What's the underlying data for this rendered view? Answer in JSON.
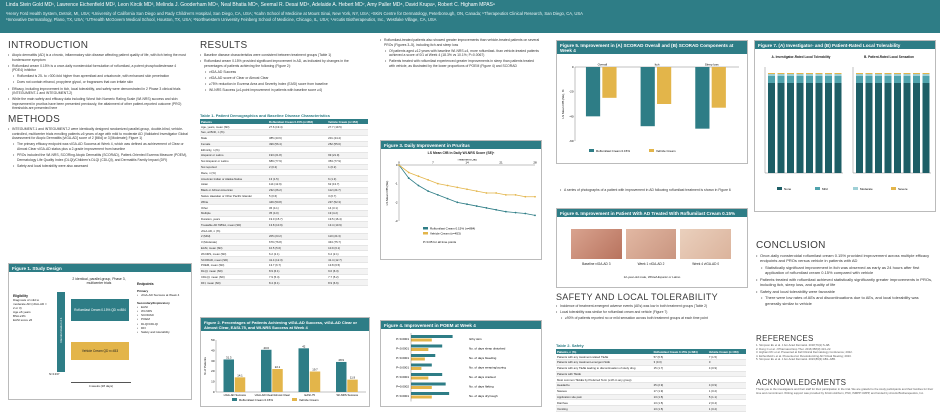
{
  "header": {
    "lines": [
      "Linda Stein Gold MD¹, Lawrence Eichenfield MD², Leon Kircik MD³, Melinda J. Gooderham MD⁴, Neal Bhatia MD⁵, Seemal R. Desai MD⁶, Adelaide A. Hebert MD⁷, Amy Paller MD⁸, David Krupa⁹, Robert C. Higham MPAS⁹",
      "¹Henry Ford Health System, Detroit, MI, USA; ²University of California San Diego and Rady Children's Hospital, San Diego, CA, USA; ³Icahn School of Medicine at Mount Sinai, New York, NY, USA; ⁴SKiN Centre for Dermatology, Peterborough, ON, Canada; ⁵Therapeutics Clinical Research, San Diego, CA, USA",
      "⁶Innovative Dermatology, Plano, TX, USA; ⁷UTHealth McGovern Medical School, Houston, TX, USA; ⁸Northwestern University Feinberg School of Medicine, Chicago, IL, USA; ⁹Arcutis Biotherapeutics, Inc., Westlake Village, CA, USA"
    ]
  },
  "intro": {
    "title": "INTRODUCTION",
    "bullets": [
      "Atopic dermatitis (AD) is a chronic, inflammatory skin disease affecting patient quality of life, with itch being the most burdensome symptom",
      "Roflumilast cream 0.15% is a once-daily nonsteroidal formulation of roflumilast, a potent phosphodiesterase 4 (PDE4) inhibitor",
      "Roflumilast is 25- to >300-fold higher than apremilast and crisaborole, with enhanced skin penetration",
      "Does not contain ethanol, propylene glycol, or fragrances that can irritate skin",
      "Efficacy, including improvement in itch, local tolerability, and safety were demonstrated in 2 Phase 3 clinical trials (INTEGUMENT-1 and INTEGUMENT-2)",
      "While the main safety and efficacy data including Worst Itch Numeric Rating Scale (WI-NRS) success and skin improvement in pruritus have been presented previously, the attainment of other patient-reported outcome (PRO) thresholds are presented here"
    ]
  },
  "methods": {
    "title": "METHODS",
    "bullets": [
      "INTEGUMENT-1 and INTEGUMENT-2 were identically designed randomized parallel-group, double-blind, vehicle-controlled, multicenter trials enrolling patients ≥6 years of age with mild to moderate AD (Validated Investigator Global Assessment for Atopic Dermatitis [vIGA-AD] score of 2 [Mild] or 3 [Moderate]; Figure 1)",
      "The primary efficacy endpoint was vIGA-AD Success at Week 4, which was defined as achievement of Clear or Almost Clear vIGA-AD status plus a 2-grade improvement from baseline",
      "PROs included the WI-NRS, SCORing Atopic Dermatitis (SCORAD), Patient-Oriented Eczema Measure (POEM), Dermatology Life Quality Index (DLQI)/Children's DLQI (CDLQI), and Dermatitis Family Impact (DFI)",
      "Safety and local tolerability were also assessed"
    ],
    "figure1": {
      "title": "Figure 1. Study Design",
      "design_text": "2 identical, parallel-group, Phase 3, multicenter trials",
      "randomization": "Randomization 2:1",
      "arm1": "Roflumilast Cream 0.15% QD n=884",
      "arm2": "Vehicle Cream QD n=453",
      "n_label": "N=1337",
      "duration": "4 weeks (28 days)",
      "eligibility_title": "Eligibility",
      "eligibility": [
        "Diagnosis of mild to moderate AD (vIGA-AD = 2 or 3)",
        "Age ≥6 years",
        "BSA ≥3%",
        "EASI score ≥5"
      ],
      "endpoints_title": "Endpoints",
      "primary_title": "Primary",
      "primary": [
        "vIGA-AD Success at Week 4"
      ],
      "secondary_title": "Secondary/Exploratory",
      "secondary": [
        "EASI",
        "WI-NRS",
        "SCORAD",
        "POEM",
        "DLQI/CDLQI",
        "DFI",
        "Safety and tolerability"
      ]
    }
  },
  "results": {
    "title": "RESULTS",
    "bullets": [
      "Baseline disease characteristics were consistent between treatment groups (Table 1)",
      "Roflumilast cream 0.15% provided significant improvement in AD, as indicated by changes in the percentages of patients achieving the following (Figure 2):",
      "vIGA-AD Success",
      "vIGA-AD score of Clear or Almost Clear",
      "≥75% reduction in Eczema Area and Severity Index (EASI) score from baseline",
      "WI-NRS Success (≥4-point improvement in patients with baseline score ≥4)"
    ],
    "table1": {
      "title": "Table 1. Patient Demographics and Baseline Disease Characteristics",
      "headers": [
        "Patients",
        "Roflumilast Cream 0.15% (n=884)",
        "Vehicle Cream (n=453)"
      ],
      "rows": [
        [
          "Age, years, mean (SD)",
          "27.6 (19.4)",
          "27.7 (19.5)"
        ],
        [
          "Sex, at Birth, n (%)",
          "",
          ""
        ],
        [
          "Male",
          "385 (43.6)",
          "201 (44.4)"
        ],
        [
          "Female",
          "499 (56.4)",
          "252 (55.6)"
        ],
        [
          "Ethnicity, n (%)",
          "",
          ""
        ],
        [
          "Hispanic or Latino",
          "193 (21.8)",
          "99 (21.9)"
        ],
        [
          "Not Hispanic or Latino",
          "689 (77.9)",
          "353 (77.9)"
        ],
        [
          "Not reported",
          "2 (0.2)",
          "1 (0.2)"
        ],
        [
          "Race, n (%)",
          "",
          ""
        ],
        [
          "American Indian or Alaska Native",
          "13 (1.5)",
          "6 (1.3)"
        ],
        [
          "Asian",
          "114 (12.9)",
          "62 (13.7)"
        ],
        [
          "Black or African American",
          "232 (26.2)",
          "112 (24.7)"
        ],
        [
          "Native Hawaiian or Other Pacific Islander",
          "5 (0.6)",
          "3 (0.7)"
        ],
        [
          "White",
          "449 (50.8)",
          "237 (52.3)"
        ],
        [
          "Other",
          "36 (4.1)",
          "14 (3.1)"
        ],
        [
          "Multiple",
          "35 (4.0)",
          "19 (4.2)"
        ],
        [
          "Duration, years",
          "19.0 (15.7)",
          "19.5 (16.4)"
        ],
        [
          "Treatable AD %BSA, mean (SD)",
          "13.8 (10.9)",
          "13.4 (10.9)"
        ],
        [
          "vIGA-AD, n (%)",
          "",
          ""
        ],
        [
          "2 (Mild)",
          "205 (23.2)",
          "110 (24.3)"
        ],
        [
          "3 (Moderate)",
          "679 (76.8)",
          "343 (75.7)"
        ],
        [
          "EASI, mean (SD)",
          "10.5 (5.6)",
          "10.9 (6.1)"
        ],
        [
          "WI-NRS, mean (SD)",
          "6.2 (2.1)",
          "6.2 (2.1)"
        ],
        [
          "SCORAD, mean (SD)",
          "41.4 (12.3)",
          "41.4 (12.7)"
        ],
        [
          "POEM, mean (SD)",
          "13.7 (6.7)",
          "13.8 (6.5)"
        ],
        [
          "DLQI, mean (SD)",
          "8.9 (6.1)",
          "9.0 (6.3)"
        ],
        [
          "CDLQI, mean (SD)",
          "7.9 (5.4)",
          "7.7 (5.2)"
        ],
        [
          "DFI, mean (SD)",
          "8.4 (6.1)",
          "8.9 (6.6)"
        ]
      ]
    },
    "figure2": {
      "title": "Figure 2. Percentages of Patients Achieving vIGA-AD Success, vIGA-AD Clear or Almost Clear, EASI-75, and WI-NRS Success at Week 4",
      "legend": [
        "Roflumilast Cream 0.15%",
        "Vehicle Cream"
      ]
    }
  },
  "mid": {
    "bullets": [
      "Roflumilast-treated patients also showed greater improvements than vehicle-treated patients on several PROs (Figures 3–5), including itch and sleep loss",
      "Of patients aged ≥12 years with baseline WI-NRS ≥4, more roflumilast- than vehicle-treated patients achieved a score of 0/1 at Week 4 (18.3% vs 10.1%; P=0.0067)",
      "Patients treated with roflumilast experienced greater improvements in sleep than patients treated with vehicle, as illustrated by the lower proportions of POEM (Figure 4) and SCORAD"
    ],
    "figure3": {
      "title": "Figure 3. Daily Improvement in Pruritus",
      "chart_title": "LS Mean CfB in Daily WI-NRS Score (SE)ᵃ",
      "ylabel": "LS Mean CfB (SE)",
      "xlabel": "Treatment Day",
      "legend": [
        "Roflumilast Cream 0.15% (n=884)",
        "Vehicle Cream (n=453)"
      ],
      "note": "P<0.05 for all time points"
    },
    "figure4": {
      "title": "Figure 4. Improvement in POEM at Week 4",
      "items": [
        "Itchy skin",
        "No. of days sleep disturbed",
        "No. of days bleeding",
        "No. of days weeping/oozing",
        "No. of days cracked",
        "No. of days flaking",
        "No. of days dry/rough"
      ],
      "pvalues": [
        "P<0.0001",
        "P<0.0001",
        "P<0.0001",
        "P<0.0001",
        "P<0.0001",
        "P=0.0002",
        "P<0.0001"
      ]
    }
  },
  "right": {
    "figure5": {
      "title": "Figure 5. Improvement in (A) SCORAD Overall and (B) SCORAD Components at Week 4",
      "legend": [
        "Roflumilast Cream 0.15%",
        "Vehicle Cream"
      ],
      "ylabel": "LS Mean CfB (SE), %"
    },
    "photo_caption": "A series of photographs of a patient with improvement in AD following roflumilast treatment is shown in Figure 6",
    "figure6": {
      "title": "Figure 6. Improvement in Patient With AD Treated With Roflumilast Cream 0.15%",
      "labels": [
        "Baseline vIGA-AD 3",
        "Week 1 vIGA-AD 2",
        "Week 4 vIGA-AD 0"
      ],
      "caption": "12-year-old male, White/Hispanic or Latino"
    },
    "safety": {
      "title": "SAFETY AND LOCAL TOLERABILITY",
      "bullets": [
        "Incidence of treatment-emergent adverse events (AEs) was low in both treatment groups (Table 2)",
        "Local tolerability was similar for roflumilast cream and vehicle (Figure 7)",
        "≥90% of patients reported no or mild sensation across both treatment groups at each time point"
      ],
      "table2": {
        "title": "Table 2. Safety",
        "headers": [
          "Patients, n (%)",
          "Roflumilast Cream 0.15% (n=884)",
          "Vehicle Cream (n=453)"
        ],
        "rows": [
          [
            "Patients with any treatment-related TEAE",
            "57 (6.5)",
            "7 (1.5)"
          ],
          [
            "Patients with any treatment-emergent SAE",
            "3 (0.3)",
            "0"
          ],
          [
            "Patients with any TEAE leading to discontinuation of study drug",
            "15 (1.7)",
            "4 (0.9)"
          ],
          [
            "Patients with TEAE",
            "",
            ""
          ],
          [
            "Most common TEAEs by Preferred Term (≥1% in any group)",
            "",
            ""
          ],
          [
            "Headache",
            "25 (2.9)",
            "4 (0.9)"
          ],
          [
            "Nausea",
            "17 (1.9)",
            "1 (0.2)"
          ],
          [
            "Application site pain",
            "13 (1.5)",
            "5 (1.1)"
          ],
          [
            "Diarrhea",
            "13 (1.5)",
            "2 (0.4)"
          ],
          [
            "Vomiting",
            "13 (1.5)",
            "1 (0.2)"
          ]
        ]
      }
    }
  },
  "far_right": {
    "figure7": {
      "title": "Figure 7. (A) Investigator- and (B) Patient-Rated Local Tolerability",
      "a_title": "A. Investigator-Rated Local Tolerability",
      "b_title": "B. Patient-Rated Local Sensation",
      "legend": [
        "None",
        "Mild",
        "Moderate",
        "Severe"
      ]
    },
    "conclusion": {
      "title": "CONCLUSION",
      "bullets": [
        "Once-daily nonsteroidal roflumilast cream 0.15% provided improvement across multiple efficacy endpoints and PROs versus vehicle in patients with AD",
        "Statistically significant improvement in itch was observed as early as 24 hours after first application of roflumilast cream 0.15% compared with vehicle",
        "Patients treated with roflumilast achieved statistically significantly greater improvements in PROs, including itch, sleep loss, and quality of life",
        "Safety and local tolerability were favorable",
        "There were low rates of AEs and discontinuations due to AEs, and local tolerability was generally similar to vehicle"
      ]
    },
    "references": {
      "title": "REFERENCES",
      "items": [
        "1. Simpson EL et al. J Am Acad Dermatol. 2018;79(1):S-AB.",
        "2. Dong C et al. J Pharmacol Exp Ther. 2016;358(3):413–22.",
        "3. Higham RC et al. Presented at Fall Clinical Dermatology Conference; 2022.",
        "4. Eichenfield L et al. Presented at: Revolutionizing AD Virtual Meeting; 2023.",
        "5. Simpson EL et al. J Am Acad Dermatol. 2023;89(3):AB1–AB5."
      ]
    },
    "ack": {
      "title": "ACKNOWLEDGMENTS",
      "text": "Thank you to the investigators and their staff for their participation in the trial. We are grateful to the study participants and their families for their time and commitment. Writing support was provided by Kristin Ashburn, PhD, ISMPP CMPP, and funded by Arcutis Biotherapeutics, Inc."
    }
  },
  "chart_data": [
    {
      "type": "bar",
      "title": "Figure 2",
      "categories": [
        "vIGA-AD Success",
        "vIGA-AD Clear/Almost Clear",
        "EASI-75",
        "WI-NRS Success"
      ],
      "series": [
        {
          "name": "Roflumilast Cream 0.15%",
          "values": [
            31.3,
            40.6,
            42.0,
            28.9
          ]
        },
        {
          "name": "Vehicle Cream",
          "values": [
            14.1,
            22.1,
            19.7,
            11.9
          ]
        }
      ],
      "ylabel": "% of Patients",
      "ylim": [
        0,
        50
      ]
    },
    {
      "type": "line",
      "title": "Figure 3",
      "x": [
        0,
        2,
        4,
        6,
        8,
        10,
        12,
        14,
        16,
        18,
        20,
        22,
        24,
        26,
        28
      ],
      "series": [
        {
          "name": "Roflumilast Cream 0.15% (n=884)",
          "values": [
            0,
            -0.7,
            -1.1,
            -1.4,
            -1.6,
            -1.8,
            -2.0,
            -2.1,
            -2.2,
            -2.3,
            -2.4,
            -2.5,
            -2.55,
            -2.6,
            -2.7
          ]
        },
        {
          "name": "Vehicle Cream (n=453)",
          "values": [
            0,
            -0.4,
            -0.6,
            -0.8,
            -1.0,
            -1.1,
            -1.2,
            -1.3,
            -1.4,
            -1.5,
            -1.5,
            -1.6,
            -1.6,
            -1.7,
            -1.7
          ]
        }
      ],
      "xlabel": "Treatment Day",
      "ylabel": "LS Mean CfB (SE)",
      "ylim": [
        -3,
        0
      ]
    },
    {
      "type": "bar",
      "title": "Figure 4",
      "categories": [
        "Itchy skin",
        "No. of days sleep disturbed",
        "No. of days bleeding",
        "No. of days weeping/oozing",
        "No. of days cracked",
        "No. of days flaking",
        "No. of days dry/rough"
      ],
      "series": [
        {
          "name": "Roflumilast Cream 0.15%",
          "values": [
            -1.2,
            -0.9,
            -0.7,
            -0.6,
            -0.9,
            -1.0,
            -1.1
          ]
        },
        {
          "name": "Vehicle Cream",
          "values": [
            -0.6,
            -0.5,
            -0.4,
            -0.3,
            -0.5,
            -0.6,
            -0.6
          ]
        }
      ]
    },
    {
      "type": "bar",
      "title": "Figure 5",
      "categories": [
        "Overall",
        "Itch",
        "Sleep loss"
      ],
      "series": [
        {
          "name": "Roflumilast Cream 0.15%",
          "values": [
            -40,
            -48,
            -50
          ]
        },
        {
          "name": "Vehicle Cream",
          "values": [
            -25,
            -30,
            -33
          ]
        }
      ],
      "ylim": [
        -60,
        0
      ]
    }
  ]
}
